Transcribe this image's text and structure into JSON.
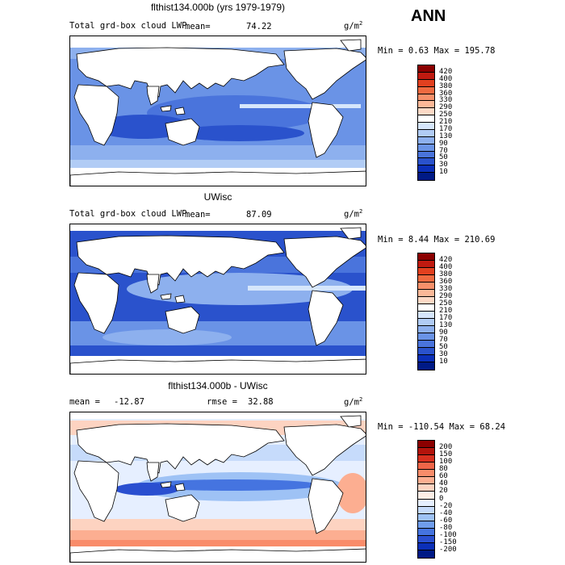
{
  "season": "ANN",
  "panels": [
    {
      "title": "flthist134.000b (yrs 1979-1979)",
      "variable": "Total grd-box cloud LWP",
      "stat1_label": "mean=",
      "stat1_value": "74.22",
      "units_base": "g/m",
      "units_exp": "2",
      "minmax": "Min =   0.63 Max = 195.78",
      "colorbar_labels": [
        "420",
        "400",
        "380",
        "360",
        "330",
        "290",
        "250",
        "210",
        "170",
        "130",
        "90",
        "70",
        "50",
        "30",
        "10"
      ],
      "colors": [
        "#8b0000",
        "#c01a10",
        "#e2401f",
        "#ef6a40",
        "#f7906a",
        "#fbb898",
        "#fcd9c6",
        "#ffffff",
        "#d6e6fb",
        "#b1ccf5",
        "#8db0ee",
        "#6a93e6",
        "#4a74dc",
        "#2a52cc",
        "#0b2fb8",
        "#001a86"
      ]
    },
    {
      "title": "UWisc",
      "variable": "Total grd-box cloud LWP",
      "stat1_label": "mean=",
      "stat1_value": "87.09",
      "units_base": "g/m",
      "units_exp": "2",
      "minmax": "Min =   8.44 Max = 210.69",
      "colorbar_labels": [
        "420",
        "400",
        "380",
        "360",
        "330",
        "290",
        "250",
        "210",
        "170",
        "130",
        "90",
        "70",
        "50",
        "30",
        "10"
      ],
      "colors": [
        "#8b0000",
        "#c01a10",
        "#e2401f",
        "#ef6a40",
        "#f7906a",
        "#fbb898",
        "#fcd9c6",
        "#ffffff",
        "#d6e6fb",
        "#b1ccf5",
        "#8db0ee",
        "#6a93e6",
        "#4a74dc",
        "#2a52cc",
        "#0b2fb8",
        "#001a86"
      ]
    },
    {
      "title": "flthist134.000b - UWisc",
      "stat1_label": "mean =",
      "stat1_value": "-12.87",
      "stat2_label": "rmse =",
      "stat2_value": "32.88",
      "units_base": "g/m",
      "units_exp": "2",
      "minmax": "Min = -110.54 Max =  68.24",
      "colorbar_labels": [
        "200",
        "150",
        "100",
        "80",
        "60",
        "40",
        "20",
        "0",
        "-20",
        "-40",
        "-60",
        "-80",
        "-100",
        "-150",
        "-200"
      ],
      "colors": [
        "#8b0000",
        "#b3140c",
        "#d7301f",
        "#ef6548",
        "#f98c6a",
        "#fcae91",
        "#fdd3c1",
        "#fdeee6",
        "#e6efff",
        "#c6dbfb",
        "#9ec2f5",
        "#6f9ded",
        "#4574e0",
        "#2a4fd0",
        "#0b2fb8",
        "#001a86"
      ]
    }
  ]
}
